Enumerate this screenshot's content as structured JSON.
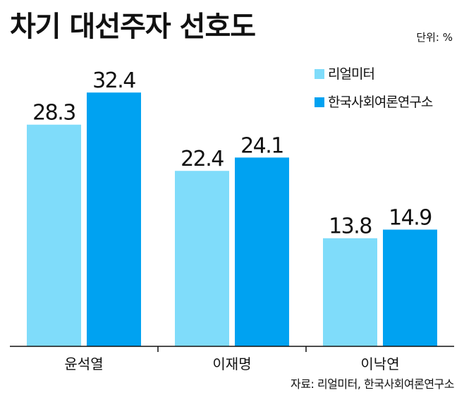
{
  "title": "차기 대선주자 선호도",
  "unit": "단위: %",
  "source": "자료: 리얼미터, 한국사회여론연구소",
  "colors": {
    "series_1": "#7fdcfa",
    "series_2": "#00a2f1",
    "axis": "#111111",
    "label": "#111111"
  },
  "chart_data": {
    "type": "bar",
    "categories": [
      "윤석열",
      "이재명",
      "이낙연"
    ],
    "series": [
      {
        "name": "리얼미터",
        "values": [
          28.3,
          22.4,
          13.8
        ]
      },
      {
        "name": "한국사회여론연구소",
        "values": [
          32.4,
          24.1,
          14.9
        ]
      }
    ],
    "ylim": [
      0,
      38
    ],
    "grid": false,
    "legend_position": "top-right"
  }
}
